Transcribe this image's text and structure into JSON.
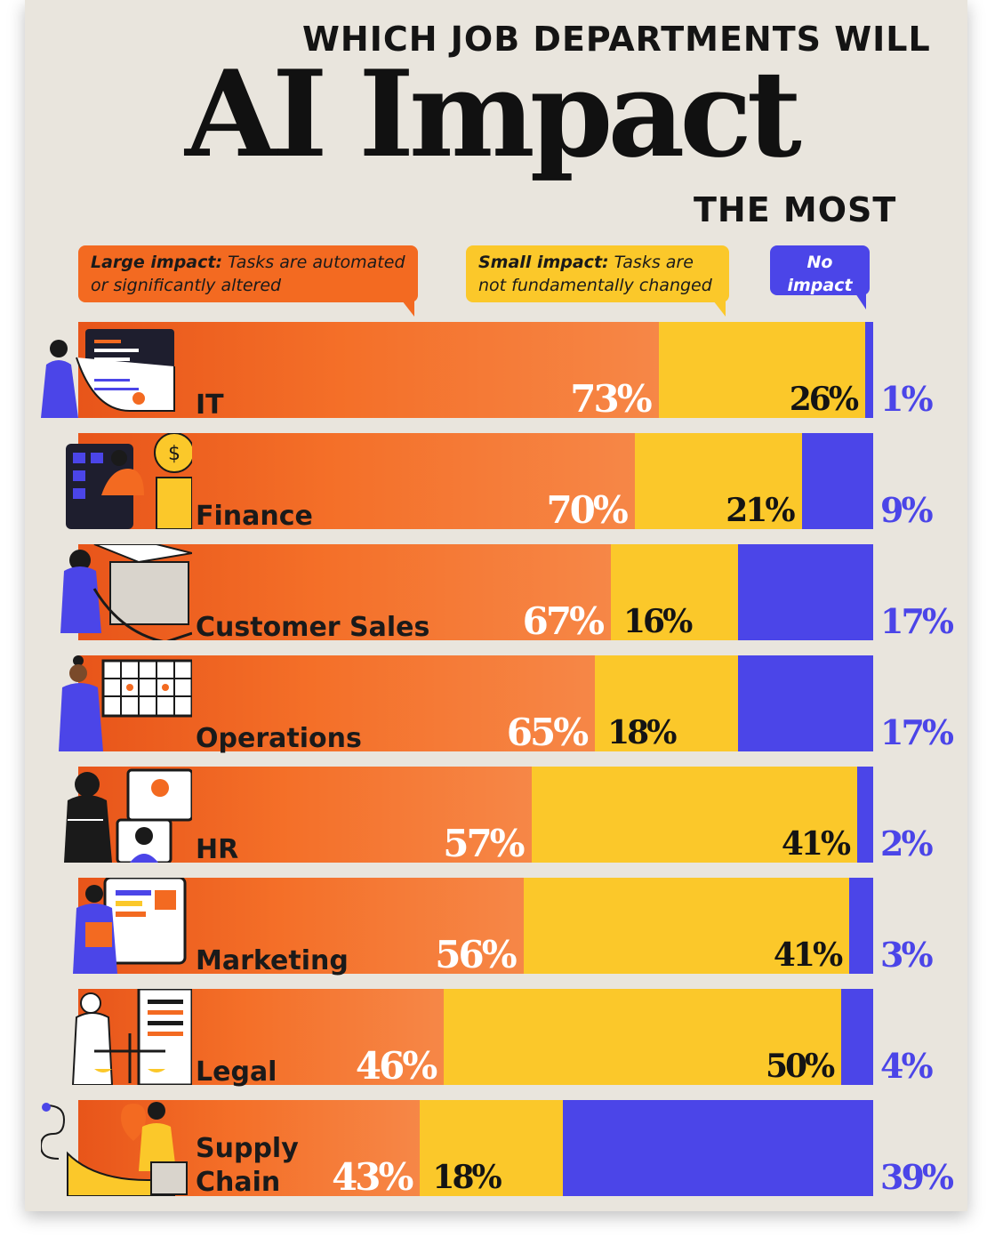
{
  "header": {
    "title_line1": "WHICH JOB DEPARTMENTS WILL",
    "title_line2": "AI Impact",
    "title_line3": "THE MOST"
  },
  "legend": {
    "large": {
      "bold": "Large impact:",
      "text": " Tasks are automated or significantly altered"
    },
    "small": {
      "bold": "Small impact:",
      "text": " Tasks are not fundamentally changed"
    },
    "none": {
      "bold": "No impact",
      "text": ""
    }
  },
  "colors": {
    "large": "#f36a21",
    "small": "#fbc82a",
    "none": "#4b45e8",
    "background": "#e9e5dd"
  },
  "chart_data": {
    "type": "bar",
    "stacked": true,
    "orientation": "horizontal",
    "categories": [
      "IT",
      "Finance",
      "Customer Sales",
      "Operations",
      "HR",
      "Marketing",
      "Legal",
      "Supply Chain"
    ],
    "series": [
      {
        "name": "Large impact",
        "values": [
          73,
          70,
          67,
          65,
          57,
          56,
          46,
          43
        ]
      },
      {
        "name": "Small impact",
        "values": [
          26,
          21,
          16,
          18,
          41,
          41,
          50,
          18
        ]
      },
      {
        "name": "No impact",
        "values": [
          1,
          9,
          17,
          17,
          2,
          3,
          4,
          39
        ]
      }
    ],
    "labels": {
      "large": [
        "73%",
        "70%",
        "67%",
        "65%",
        "57%",
        "56%",
        "46%",
        "43%"
      ],
      "small": [
        "26%",
        "21%",
        "16%",
        "18%",
        "41%",
        "41%",
        "50%",
        "18%"
      ],
      "none": [
        "1%",
        "9%",
        "17%",
        "17%",
        "2%",
        "3%",
        "4%",
        "39%"
      ]
    },
    "icons": [
      "developer-screen-icon",
      "coin-calculator-icon",
      "sales-package-icon",
      "calendar-planning-icon",
      "video-call-icon",
      "marketing-board-icon",
      "legal-scales-icon",
      "delivery-map-icon"
    ],
    "title": "WHICH JOB DEPARTMENTS WILL AI Impact THE MOST",
    "xlim": [
      0,
      100
    ]
  }
}
